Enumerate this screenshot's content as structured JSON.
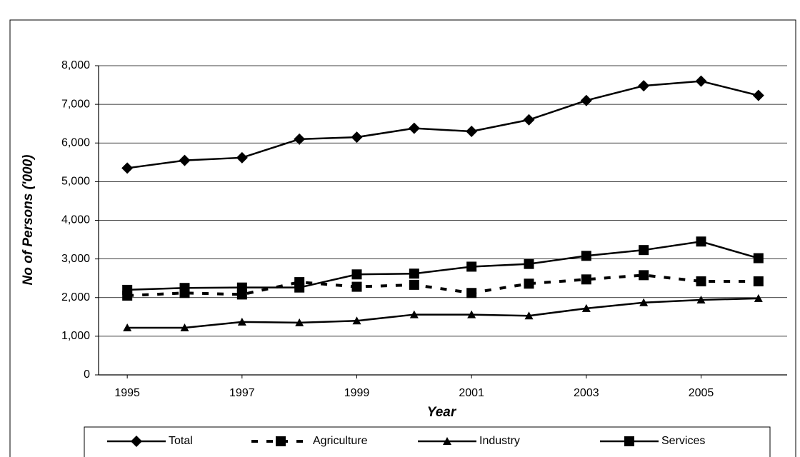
{
  "chart_data": {
    "type": "line",
    "x_label": "Year",
    "y_label": "No of Persons ('000)",
    "x": [
      1995,
      1996,
      1997,
      1998,
      1999,
      2000,
      2001,
      2002,
      2003,
      2004,
      2005,
      2006
    ],
    "xlim": [
      1994.5,
      2006.5
    ],
    "xticks": [
      1995,
      1997,
      1999,
      2001,
      2003,
      2005
    ],
    "ylim": [
      0,
      8000
    ],
    "yticks": [
      0,
      {
        "value": 1000,
        "label": "1,000"
      },
      {
        "value": 2000,
        "label": "2,000"
      },
      {
        "value": 3000,
        "label": "3,000"
      },
      {
        "value": 4000,
        "label": "4,000"
      },
      {
        "value": 5000,
        "label": "5,000"
      },
      {
        "value": 6000,
        "label": "6,000"
      },
      {
        "value": 7000,
        "label": "7,000"
      },
      {
        "value": 8000,
        "label": "8,000"
      }
    ],
    "grid": true,
    "legend": "bottom",
    "series": [
      {
        "name": "Total",
        "color": "#000000",
        "marker": "diamond",
        "line_style": "solid",
        "values": [
          5350,
          5550,
          5620,
          6100,
          6150,
          6380,
          6300,
          6600,
          7100,
          7480,
          7600,
          7230
        ]
      },
      {
        "name": "Agriculture",
        "color": "#000000",
        "marker": "square",
        "line_style": "dashed",
        "values": [
          2050,
          2120,
          2080,
          2400,
          2280,
          2330,
          2120,
          2360,
          2470,
          2580,
          2420,
          2420
        ]
      },
      {
        "name": "Industry",
        "color": "#000000",
        "marker": "triangle",
        "line_style": "solid",
        "values": [
          1220,
          1220,
          1370,
          1350,
          1400,
          1560,
          1560,
          1530,
          1720,
          1870,
          1940,
          1980
        ]
      },
      {
        "name": "Services",
        "color": "#000000",
        "marker": "square",
        "line_style": "solid",
        "values": [
          2200,
          2250,
          2260,
          2260,
          2600,
          2620,
          2800,
          2870,
          3080,
          3230,
          3450,
          3020
        ]
      }
    ]
  }
}
